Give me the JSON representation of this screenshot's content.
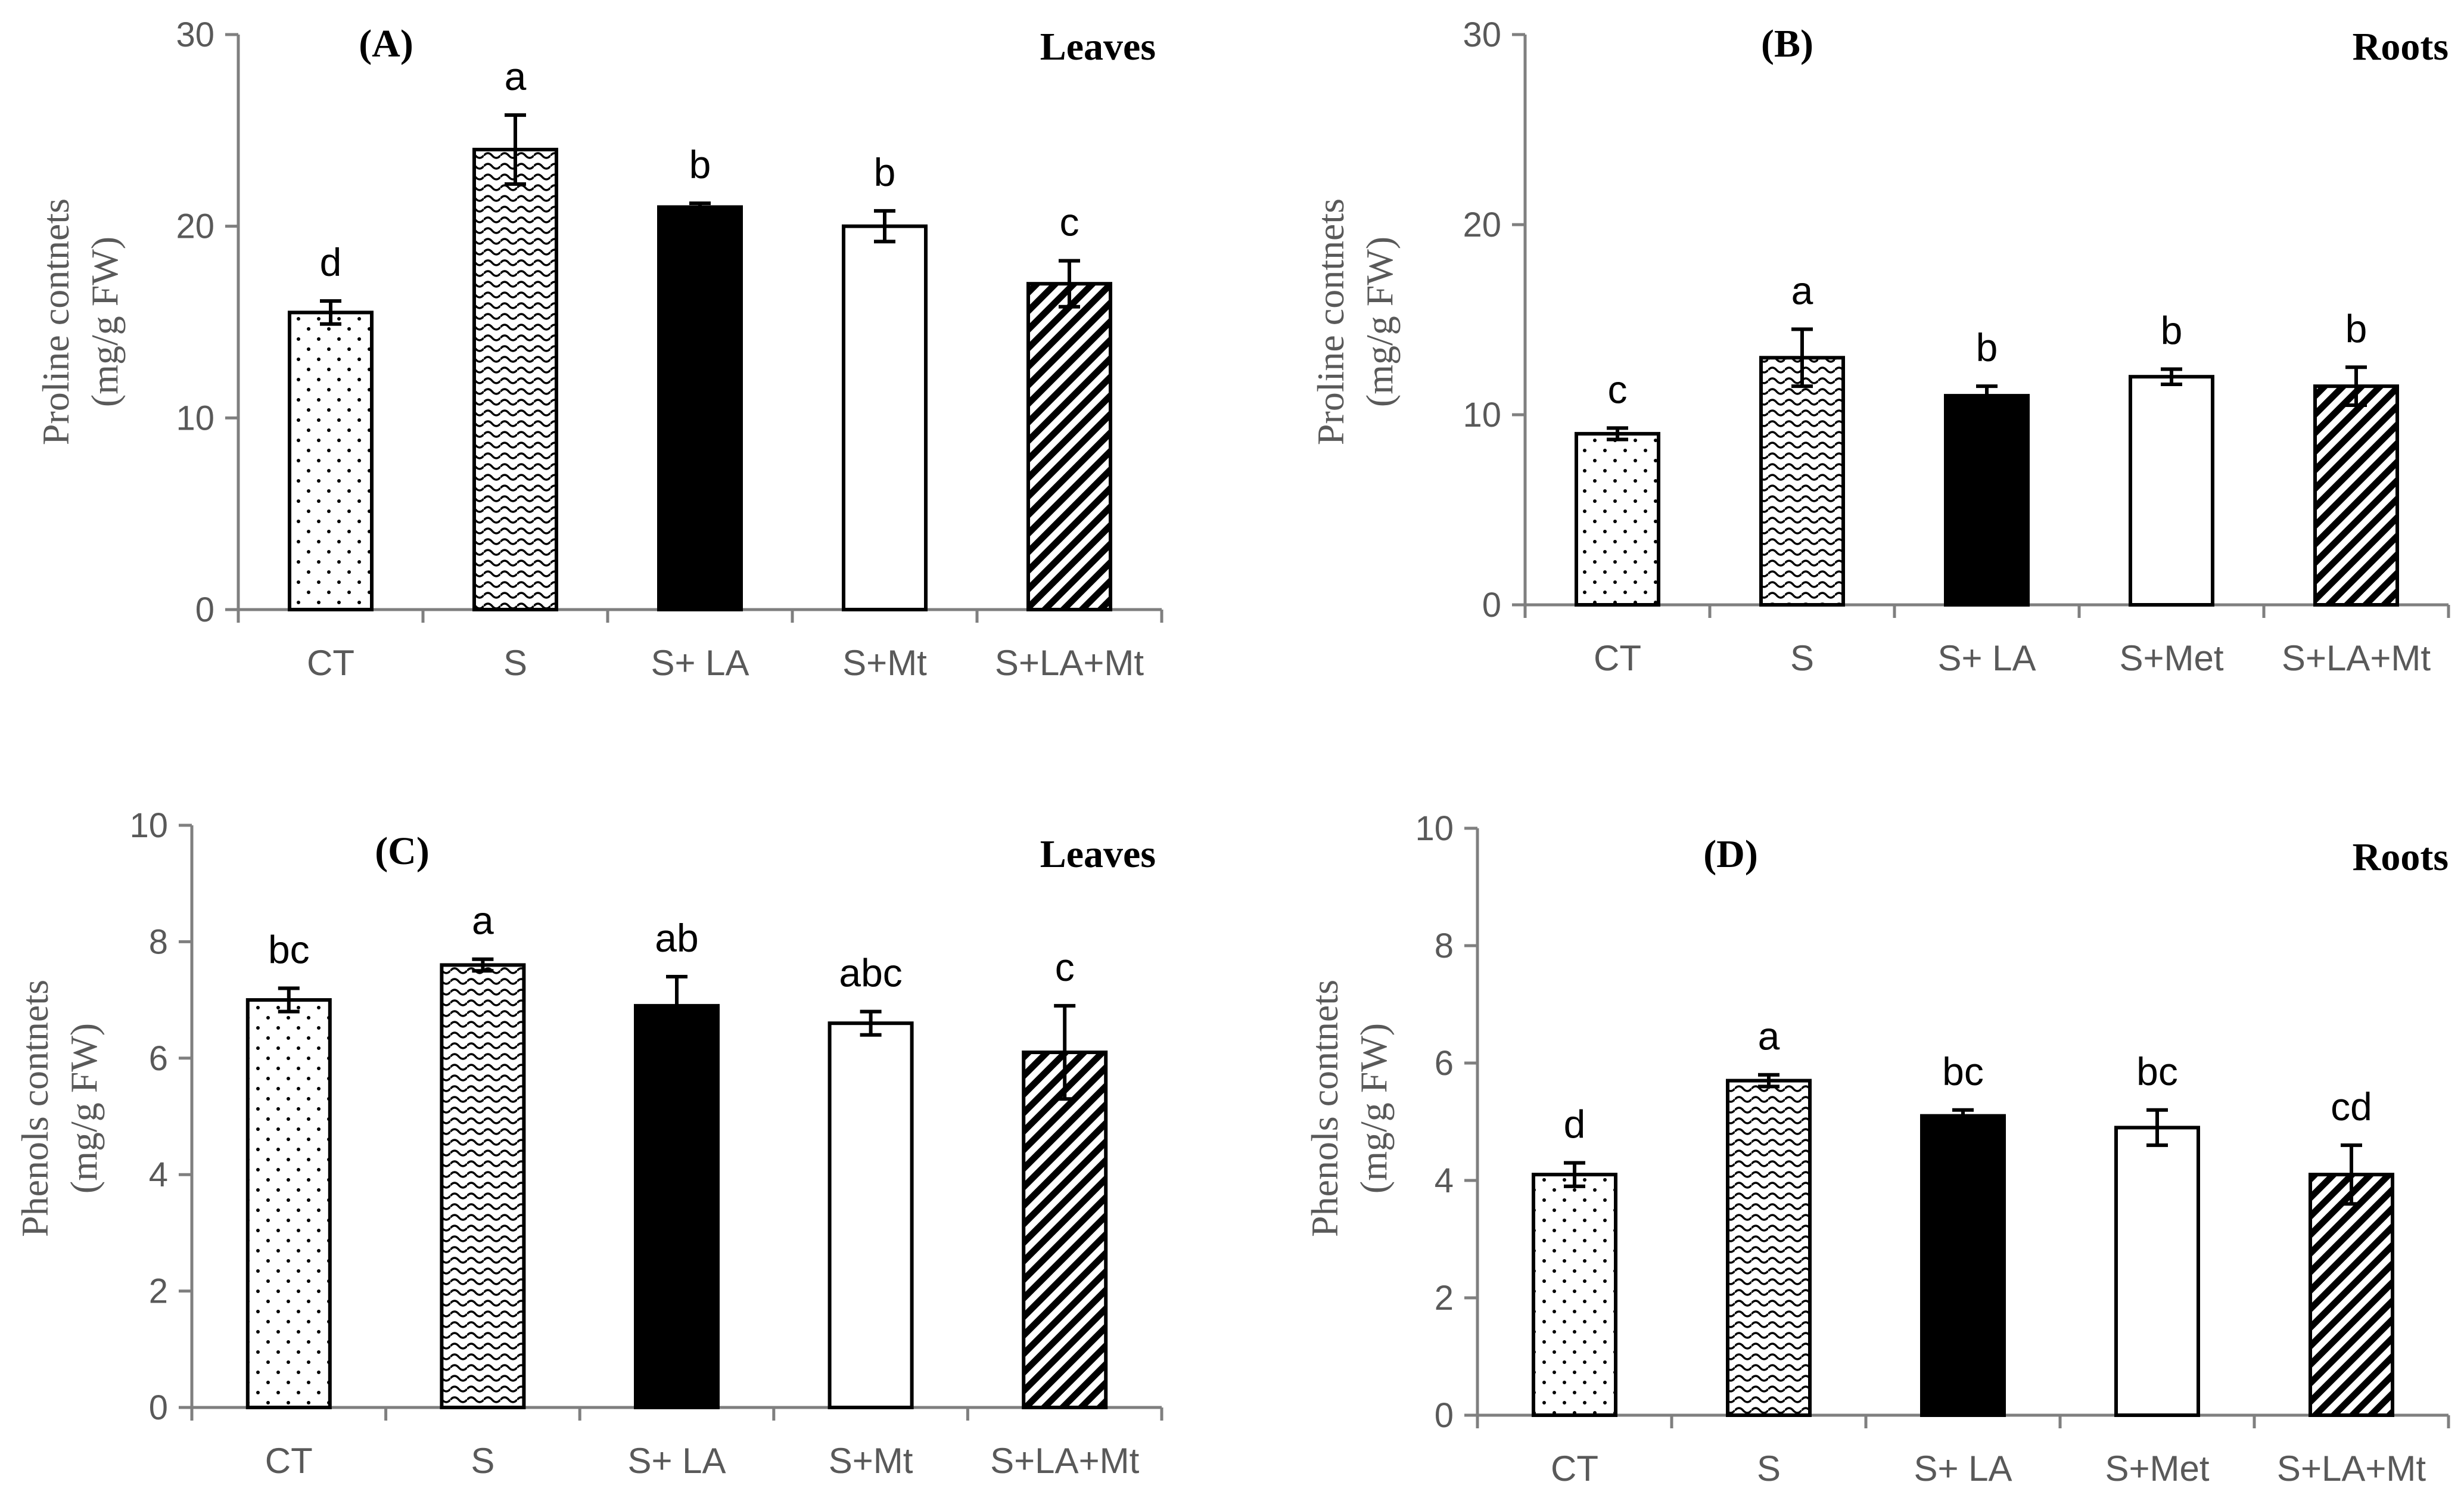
{
  "colors": {
    "axis": "#7f7f7f",
    "text": "#595959",
    "bar_outline": "#000000",
    "solid_fill": "#000000",
    "open_fill": "#ffffff"
  },
  "chart_data": [
    {
      "type": "bar",
      "panel_label": "(A)",
      "title": "Leaves",
      "ylabel_line1": "Proline contnets",
      "ylabel_line2": "(mg/g FW)",
      "categories": [
        "CT",
        "S",
        "S+ LA",
        "S+Mt",
        "S+LA+Mt"
      ],
      "values": [
        15.5,
        24.0,
        21.0,
        20.0,
        17.0
      ],
      "errors": [
        0.6,
        1.8,
        0.2,
        0.8,
        1.2
      ],
      "letters": [
        "d",
        "a",
        "b",
        "b",
        "c"
      ],
      "patterns": [
        "dots",
        "waves",
        "solid",
        "open",
        "diag"
      ],
      "ylim": [
        0,
        30
      ],
      "yticks": [
        0,
        10,
        20,
        30
      ],
      "grid": false
    },
    {
      "type": "bar",
      "panel_label": "(B)",
      "title": "Roots",
      "ylabel_line1": "Proline contnets",
      "ylabel_line2": "(mg/g FW)",
      "categories": [
        "CT",
        "S",
        "S+ LA",
        "S+Met",
        "S+LA+Mt"
      ],
      "values": [
        9.0,
        13.0,
        11.0,
        12.0,
        11.5
      ],
      "errors": [
        0.3,
        1.5,
        0.5,
        0.4,
        1.0
      ],
      "letters": [
        "c",
        "a",
        "b",
        "b",
        "b"
      ],
      "patterns": [
        "dots",
        "waves",
        "solid",
        "open",
        "diag"
      ],
      "ylim": [
        0,
        30
      ],
      "yticks": [
        0,
        10,
        20,
        30
      ],
      "grid": false
    },
    {
      "type": "bar",
      "panel_label": "(C)",
      "title": "Leaves",
      "ylabel_line1": "Phenols contnets",
      "ylabel_line2": "(mg/g FW)",
      "categories": [
        "CT",
        "S",
        "S+ LA",
        "S+Mt",
        "S+LA+Mt"
      ],
      "values": [
        7.0,
        7.6,
        6.9,
        6.6,
        6.1
      ],
      "errors": [
        0.2,
        0.1,
        0.5,
        0.2,
        0.8
      ],
      "letters": [
        "bc",
        "a",
        "ab",
        "abc",
        "c"
      ],
      "patterns": [
        "dots",
        "waves",
        "solid",
        "open",
        "diag"
      ],
      "ylim": [
        0,
        10
      ],
      "yticks": [
        0,
        2,
        4,
        6,
        8,
        10
      ],
      "grid": false
    },
    {
      "type": "bar",
      "panel_label": "(D)",
      "title": "Roots",
      "ylabel_line1": "Phenols contnets",
      "ylabel_line2": "(mg/g FW)",
      "categories": [
        "CT",
        "S",
        "S+ LA",
        "S+Met",
        "S+LA+Mt"
      ],
      "values": [
        4.1,
        5.7,
        5.1,
        4.9,
        4.1
      ],
      "errors": [
        0.2,
        0.1,
        0.1,
        0.3,
        0.5
      ],
      "letters": [
        "d",
        "a",
        "bc",
        "bc",
        "cd"
      ],
      "patterns": [
        "dots",
        "waves",
        "solid",
        "open",
        "diag"
      ],
      "ylim": [
        0,
        10
      ],
      "yticks": [
        0,
        2,
        4,
        6,
        8,
        10
      ],
      "grid": false
    }
  ]
}
